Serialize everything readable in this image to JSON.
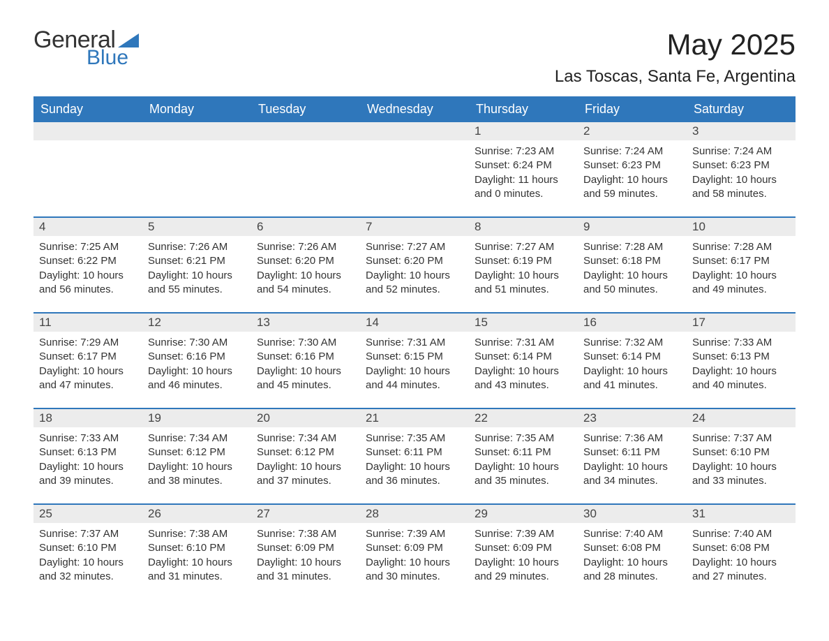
{
  "brand": {
    "word1": "General",
    "word2": "Blue",
    "triangle_color": "#2f77bb"
  },
  "title": "May 2025",
  "location": "Las Toscas, Santa Fe, Argentina",
  "colors": {
    "header_bg": "#2f77bb",
    "header_text": "#ffffff",
    "daynum_bg": "#ececec",
    "text": "#333333",
    "page_bg": "#ffffff",
    "week_border": "#2f77bb"
  },
  "weekdays": [
    "Sunday",
    "Monday",
    "Tuesday",
    "Wednesday",
    "Thursday",
    "Friday",
    "Saturday"
  ],
  "weeks": [
    [
      {
        "n": "",
        "sunrise": "",
        "sunset": "",
        "daylight": ""
      },
      {
        "n": "",
        "sunrise": "",
        "sunset": "",
        "daylight": ""
      },
      {
        "n": "",
        "sunrise": "",
        "sunset": "",
        "daylight": ""
      },
      {
        "n": "",
        "sunrise": "",
        "sunset": "",
        "daylight": ""
      },
      {
        "n": "1",
        "sunrise": "Sunrise: 7:23 AM",
        "sunset": "Sunset: 6:24 PM",
        "daylight": "Daylight: 11 hours and 0 minutes."
      },
      {
        "n": "2",
        "sunrise": "Sunrise: 7:24 AM",
        "sunset": "Sunset: 6:23 PM",
        "daylight": "Daylight: 10 hours and 59 minutes."
      },
      {
        "n": "3",
        "sunrise": "Sunrise: 7:24 AM",
        "sunset": "Sunset: 6:23 PM",
        "daylight": "Daylight: 10 hours and 58 minutes."
      }
    ],
    [
      {
        "n": "4",
        "sunrise": "Sunrise: 7:25 AM",
        "sunset": "Sunset: 6:22 PM",
        "daylight": "Daylight: 10 hours and 56 minutes."
      },
      {
        "n": "5",
        "sunrise": "Sunrise: 7:26 AM",
        "sunset": "Sunset: 6:21 PM",
        "daylight": "Daylight: 10 hours and 55 minutes."
      },
      {
        "n": "6",
        "sunrise": "Sunrise: 7:26 AM",
        "sunset": "Sunset: 6:20 PM",
        "daylight": "Daylight: 10 hours and 54 minutes."
      },
      {
        "n": "7",
        "sunrise": "Sunrise: 7:27 AM",
        "sunset": "Sunset: 6:20 PM",
        "daylight": "Daylight: 10 hours and 52 minutes."
      },
      {
        "n": "8",
        "sunrise": "Sunrise: 7:27 AM",
        "sunset": "Sunset: 6:19 PM",
        "daylight": "Daylight: 10 hours and 51 minutes."
      },
      {
        "n": "9",
        "sunrise": "Sunrise: 7:28 AM",
        "sunset": "Sunset: 6:18 PM",
        "daylight": "Daylight: 10 hours and 50 minutes."
      },
      {
        "n": "10",
        "sunrise": "Sunrise: 7:28 AM",
        "sunset": "Sunset: 6:17 PM",
        "daylight": "Daylight: 10 hours and 49 minutes."
      }
    ],
    [
      {
        "n": "11",
        "sunrise": "Sunrise: 7:29 AM",
        "sunset": "Sunset: 6:17 PM",
        "daylight": "Daylight: 10 hours and 47 minutes."
      },
      {
        "n": "12",
        "sunrise": "Sunrise: 7:30 AM",
        "sunset": "Sunset: 6:16 PM",
        "daylight": "Daylight: 10 hours and 46 minutes."
      },
      {
        "n": "13",
        "sunrise": "Sunrise: 7:30 AM",
        "sunset": "Sunset: 6:16 PM",
        "daylight": "Daylight: 10 hours and 45 minutes."
      },
      {
        "n": "14",
        "sunrise": "Sunrise: 7:31 AM",
        "sunset": "Sunset: 6:15 PM",
        "daylight": "Daylight: 10 hours and 44 minutes."
      },
      {
        "n": "15",
        "sunrise": "Sunrise: 7:31 AM",
        "sunset": "Sunset: 6:14 PM",
        "daylight": "Daylight: 10 hours and 43 minutes."
      },
      {
        "n": "16",
        "sunrise": "Sunrise: 7:32 AM",
        "sunset": "Sunset: 6:14 PM",
        "daylight": "Daylight: 10 hours and 41 minutes."
      },
      {
        "n": "17",
        "sunrise": "Sunrise: 7:33 AM",
        "sunset": "Sunset: 6:13 PM",
        "daylight": "Daylight: 10 hours and 40 minutes."
      }
    ],
    [
      {
        "n": "18",
        "sunrise": "Sunrise: 7:33 AM",
        "sunset": "Sunset: 6:13 PM",
        "daylight": "Daylight: 10 hours and 39 minutes."
      },
      {
        "n": "19",
        "sunrise": "Sunrise: 7:34 AM",
        "sunset": "Sunset: 6:12 PM",
        "daylight": "Daylight: 10 hours and 38 minutes."
      },
      {
        "n": "20",
        "sunrise": "Sunrise: 7:34 AM",
        "sunset": "Sunset: 6:12 PM",
        "daylight": "Daylight: 10 hours and 37 minutes."
      },
      {
        "n": "21",
        "sunrise": "Sunrise: 7:35 AM",
        "sunset": "Sunset: 6:11 PM",
        "daylight": "Daylight: 10 hours and 36 minutes."
      },
      {
        "n": "22",
        "sunrise": "Sunrise: 7:35 AM",
        "sunset": "Sunset: 6:11 PM",
        "daylight": "Daylight: 10 hours and 35 minutes."
      },
      {
        "n": "23",
        "sunrise": "Sunrise: 7:36 AM",
        "sunset": "Sunset: 6:11 PM",
        "daylight": "Daylight: 10 hours and 34 minutes."
      },
      {
        "n": "24",
        "sunrise": "Sunrise: 7:37 AM",
        "sunset": "Sunset: 6:10 PM",
        "daylight": "Daylight: 10 hours and 33 minutes."
      }
    ],
    [
      {
        "n": "25",
        "sunrise": "Sunrise: 7:37 AM",
        "sunset": "Sunset: 6:10 PM",
        "daylight": "Daylight: 10 hours and 32 minutes."
      },
      {
        "n": "26",
        "sunrise": "Sunrise: 7:38 AM",
        "sunset": "Sunset: 6:10 PM",
        "daylight": "Daylight: 10 hours and 31 minutes."
      },
      {
        "n": "27",
        "sunrise": "Sunrise: 7:38 AM",
        "sunset": "Sunset: 6:09 PM",
        "daylight": "Daylight: 10 hours and 31 minutes."
      },
      {
        "n": "28",
        "sunrise": "Sunrise: 7:39 AM",
        "sunset": "Sunset: 6:09 PM",
        "daylight": "Daylight: 10 hours and 30 minutes."
      },
      {
        "n": "29",
        "sunrise": "Sunrise: 7:39 AM",
        "sunset": "Sunset: 6:09 PM",
        "daylight": "Daylight: 10 hours and 29 minutes."
      },
      {
        "n": "30",
        "sunrise": "Sunrise: 7:40 AM",
        "sunset": "Sunset: 6:08 PM",
        "daylight": "Daylight: 10 hours and 28 minutes."
      },
      {
        "n": "31",
        "sunrise": "Sunrise: 7:40 AM",
        "sunset": "Sunset: 6:08 PM",
        "daylight": "Daylight: 10 hours and 27 minutes."
      }
    ]
  ]
}
